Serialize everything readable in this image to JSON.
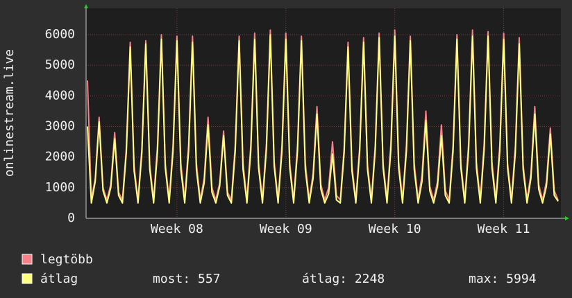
{
  "chart_data": {
    "type": "line",
    "y_label": "onlinestream.live",
    "categories": [
      null,
      null,
      null,
      null,
      null,
      null,
      null,
      null,
      null,
      null,
      null,
      null,
      null,
      null,
      null,
      null,
      null,
      null,
      null,
      null,
      null,
      null,
      null,
      "Week 08",
      null,
      null,
      null,
      null,
      null,
      null,
      null,
      null,
      null,
      null,
      null,
      null,
      null,
      null,
      null,
      null,
      null,
      null,
      null,
      null,
      null,
      null,
      null,
      null,
      null,
      null,
      null,
      "Week 09",
      null,
      null,
      null,
      null,
      null,
      null,
      null,
      null,
      null,
      null,
      null,
      null,
      null,
      null,
      null,
      null,
      null,
      null,
      null,
      null,
      null,
      null,
      null,
      null,
      null,
      null,
      null,
      "Week 10",
      null,
      null,
      null,
      null,
      null,
      null,
      null,
      null,
      null,
      null,
      null,
      null,
      null,
      null,
      null,
      null,
      null,
      null,
      null,
      null,
      null,
      null,
      null,
      null,
      null,
      null,
      null,
      "Week 11",
      null,
      null,
      null,
      null,
      null,
      null,
      null,
      null,
      null,
      null,
      null,
      null,
      null,
      null
    ],
    "series": [
      {
        "name": "legtöbb",
        "color": "#f7828a",
        "values": [
          4500,
          600,
          1300,
          3300,
          1000,
          600,
          1100,
          2800,
          850,
          600,
          2300,
          5750,
          1700,
          600,
          2300,
          5800,
          1750,
          600,
          2400,
          6000,
          1800,
          600,
          2400,
          5950,
          1800,
          600,
          2400,
          5950,
          1800,
          600,
          1300,
          3300,
          1000,
          600,
          1150,
          2850,
          850,
          600,
          2400,
          5950,
          1800,
          600,
          2400,
          6050,
          1800,
          600,
          2450,
          6150,
          1850,
          600,
          2400,
          6050,
          1800,
          600,
          2400,
          5950,
          1800,
          600,
          1450,
          3650,
          1100,
          600,
          1000,
          2500,
          750,
          600,
          2300,
          5750,
          1700,
          600,
          2350,
          5900,
          1750,
          600,
          2400,
          6050,
          1800,
          600,
          2450,
          6150,
          1850,
          600,
          2400,
          5950,
          1800,
          600,
          1400,
          3500,
          1050,
          600,
          1200,
          3050,
          900,
          600,
          2400,
          6000,
          1800,
          600,
          2450,
          6150,
          1850,
          600,
          2450,
          6100,
          1850,
          600,
          2400,
          6050,
          1800,
          600,
          2350,
          5900,
          1750,
          600,
          1450,
          3650,
          1100,
          600,
          1200,
          2950,
          900,
          600
        ]
      },
      {
        "name": "átlag",
        "color": "#ffff80",
        "values": [
          3000,
          500,
          1200,
          3150,
          900,
          500,
          1000,
          2600,
          750,
          500,
          2150,
          5600,
          1550,
          500,
          2150,
          5700,
          1600,
          500,
          2200,
          5850,
          1650,
          500,
          2200,
          5800,
          1600,
          500,
          2200,
          5750,
          1600,
          500,
          1150,
          3050,
          850,
          500,
          1050,
          2700,
          750,
          500,
          2200,
          5800,
          1600,
          500,
          2200,
          5850,
          1650,
          500,
          2250,
          5994,
          1700,
          500,
          2200,
          5850,
          1650,
          500,
          2200,
          5800,
          1600,
          500,
          1300,
          3400,
          950,
          500,
          800,
          2100,
          600,
          500,
          2150,
          5600,
          1550,
          500,
          2200,
          5750,
          1600,
          500,
          2250,
          5900,
          1650,
          500,
          2250,
          5950,
          1650,
          500,
          2200,
          5800,
          1600,
          500,
          1200,
          3200,
          900,
          500,
          1050,
          2700,
          750,
          500,
          2200,
          5850,
          1650,
          500,
          2250,
          5950,
          1650,
          500,
          2250,
          5950,
          1650,
          500,
          2200,
          5850,
          1650,
          500,
          2150,
          5700,
          1600,
          500,
          1300,
          3400,
          950,
          500,
          1050,
          2750,
          750,
          557
        ]
      }
    ],
    "ylim": [
      0,
      6860
    ],
    "yticks": [
      0,
      1000,
      2000,
      3000,
      4000,
      5000,
      6000
    ],
    "grid": true,
    "stats": [
      {
        "label": "most:",
        "value": 557
      },
      {
        "label": "átlag:",
        "value": 2248
      },
      {
        "label": "max:",
        "value": 5994
      }
    ]
  }
}
